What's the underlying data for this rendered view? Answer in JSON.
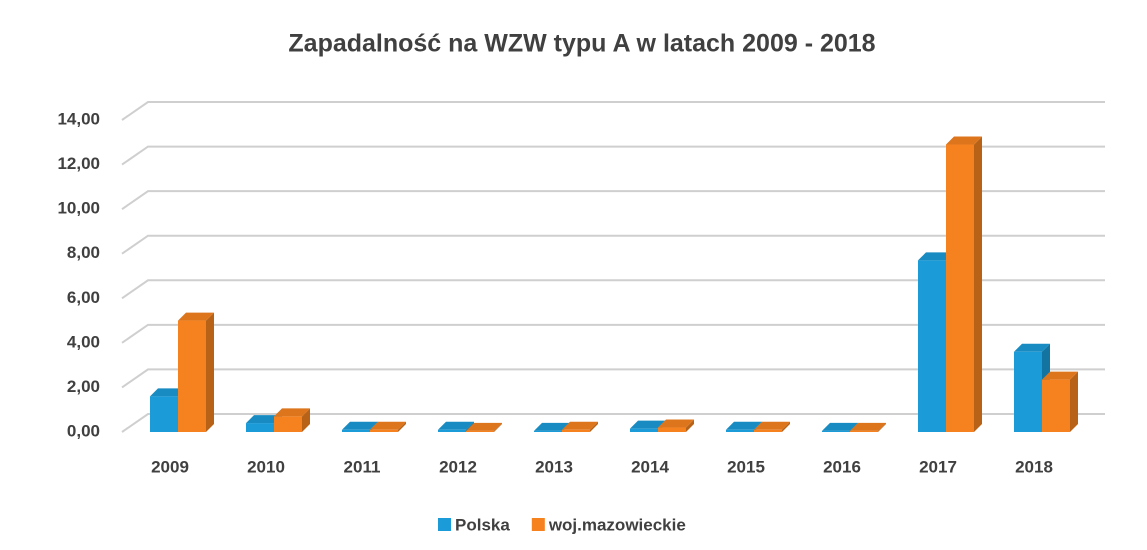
{
  "chart_data": {
    "type": "bar3d",
    "title": "Zapadalność na WZW typu A  w latach 2009 - 2018",
    "categories": [
      "2009",
      "2010",
      "2011",
      "2012",
      "2013",
      "2014",
      "2015",
      "2016",
      "2017",
      "2018"
    ],
    "series": [
      {
        "name": "Polska",
        "color": "#1b9bd7",
        "values": [
          1.6,
          0.4,
          0.1,
          0.1,
          0.05,
          0.15,
          0.1,
          0.05,
          7.7,
          3.6
        ]
      },
      {
        "name": "woj.mazowieckie",
        "color": "#f5821f",
        "values": [
          5.0,
          0.7,
          0.1,
          0.05,
          0.1,
          0.2,
          0.1,
          0.05,
          12.9,
          2.35
        ]
      }
    ],
    "ylim": [
      0,
      14
    ],
    "yticks": [
      {
        "value": 0,
        "label": "0,00"
      },
      {
        "value": 2,
        "label": "2,00"
      },
      {
        "value": 4,
        "label": "4,00"
      },
      {
        "value": 6,
        "label": "6,00"
      },
      {
        "value": 8,
        "label": "8,00"
      },
      {
        "value": 10,
        "label": "10,00"
      },
      {
        "value": 12,
        "label": "12,00"
      },
      {
        "value": 14,
        "label": "14,00"
      }
    ],
    "grid": true,
    "legend": "bottom"
  }
}
